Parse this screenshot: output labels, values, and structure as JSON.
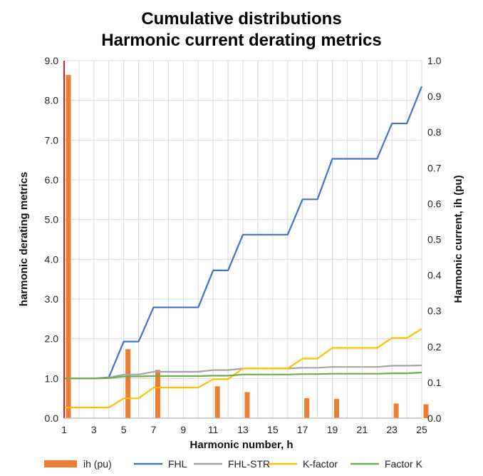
{
  "chart_data": {
    "type": "bar+line",
    "title": [
      "Cumulative distributions",
      "Harmonic current derating metrics"
    ],
    "xlabel": "Harmonic number, h",
    "ylabel_left": "harmonic derating metrics",
    "ylabel_right": "Harmonic current, ih (pu)",
    "xlim": [
      1,
      25
    ],
    "x_ticks": [
      1,
      3,
      5,
      7,
      9,
      11,
      13,
      15,
      17,
      19,
      21,
      23,
      25
    ],
    "ylim_left": [
      0,
      9
    ],
    "y_ticks_left": [
      "0.0",
      "1.0",
      "2.0",
      "3.0",
      "4.0",
      "5.0",
      "6.0",
      "7.0",
      "8.0",
      "9.0"
    ],
    "ylim_right": [
      0,
      1
    ],
    "y_ticks_right": [
      "0.0",
      "0.1",
      "0.2",
      "0.3",
      "0.4",
      "0.5",
      "0.6",
      "0.7",
      "0.8",
      "0.9",
      "1.0"
    ],
    "grid": true,
    "legend_position": "bottom",
    "x": [
      1,
      2,
      3,
      4,
      5,
      6,
      7,
      8,
      9,
      10,
      11,
      12,
      13,
      14,
      15,
      16,
      17,
      18,
      19,
      20,
      21,
      22,
      23,
      24,
      25
    ],
    "bars": {
      "name": "ih (pu)",
      "axis": "right",
      "color": "#ED7D31",
      "points": [
        {
          "x": 1,
          "y": 0.96
        },
        {
          "x": 5,
          "y": 0.193
        },
        {
          "x": 7,
          "y": 0.135
        },
        {
          "x": 11,
          "y": 0.089
        },
        {
          "x": 13,
          "y": 0.073
        },
        {
          "x": 17,
          "y": 0.056
        },
        {
          "x": 19,
          "y": 0.054
        },
        {
          "x": 23,
          "y": 0.041
        },
        {
          "x": 25,
          "y": 0.039
        }
      ]
    },
    "series": [
      {
        "name": "FHL",
        "axis": "left",
        "color": "#4472C4",
        "values": [
          1.0,
          1.0,
          1.0,
          1.03,
          1.93,
          1.93,
          2.79,
          2.79,
          2.79,
          2.79,
          3.72,
          3.72,
          4.62,
          4.62,
          4.62,
          4.62,
          5.51,
          5.51,
          6.53,
          6.53,
          6.53,
          6.53,
          7.42,
          7.42,
          8.35
        ]
      },
      {
        "name": "FHL-STR",
        "axis": "left",
        "color": "#A5A5A5",
        "values": [
          1.0,
          1.0,
          1.0,
          1.02,
          1.1,
          1.1,
          1.17,
          1.17,
          1.17,
          1.17,
          1.21,
          1.21,
          1.25,
          1.25,
          1.25,
          1.25,
          1.27,
          1.27,
          1.29,
          1.29,
          1.29,
          1.29,
          1.32,
          1.32,
          1.33
        ]
      },
      {
        "name": "K-factor",
        "axis": "left",
        "color": "#FFC000",
        "values": [
          0.27,
          0.27,
          0.27,
          0.27,
          0.5,
          0.5,
          0.77,
          0.77,
          0.77,
          0.77,
          0.98,
          0.98,
          1.25,
          1.25,
          1.25,
          1.25,
          1.5,
          1.5,
          1.77,
          1.77,
          1.77,
          1.77,
          2.02,
          2.02,
          2.25
        ]
      },
      {
        "name": "Factor K",
        "axis": "left",
        "color": "#70AD47",
        "values": [
          1.0,
          1.0,
          1.0,
          1.01,
          1.05,
          1.05,
          1.06,
          1.06,
          1.06,
          1.06,
          1.07,
          1.07,
          1.1,
          1.1,
          1.1,
          1.1,
          1.11,
          1.11,
          1.12,
          1.12,
          1.12,
          1.12,
          1.13,
          1.13,
          1.15
        ]
      }
    ],
    "legend": [
      "ih (pu)",
      "FHL",
      "FHL-STR",
      "K-factor",
      "Factor K"
    ]
  }
}
